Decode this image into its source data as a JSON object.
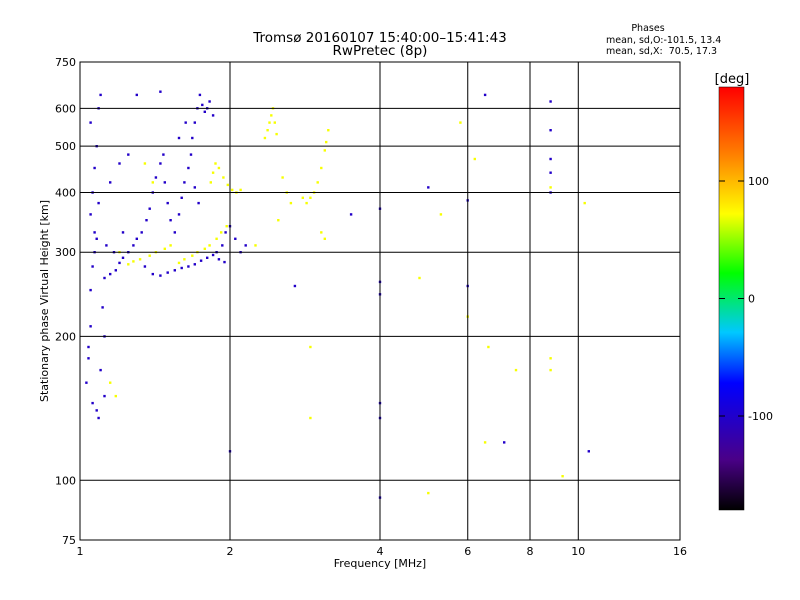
{
  "chart_data": {
    "type": "scatter",
    "title": "Tromsø 20160107 15:40:00–15:41:43",
    "subtitle": "RwPretec (8p)",
    "xlabel": "Frequency [MHz]",
    "ylabel": "Stationary phase Virtual Height [km]",
    "x_scale": "log",
    "y_scale": "log",
    "xlim": [
      1,
      16
    ],
    "ylim": [
      75,
      750
    ],
    "x_ticks": [
      1,
      2,
      4,
      6,
      8,
      10,
      16
    ],
    "y_ticks": [
      75,
      100,
      200,
      300,
      400,
      500,
      600,
      750
    ],
    "grid": true,
    "phase_stats": {
      "heading": "Phases",
      "line_o": "mean, sd,O:-101.5, 13.4",
      "line_x": "mean, sd,X:  70.5, 17.3"
    },
    "colorbar": {
      "label": "[deg]",
      "range": [
        -180,
        180
      ],
      "ticks": [
        100,
        0,
        -100
      ]
    },
    "series": [
      {
        "mode": "O",
        "phase_deg": -101.5,
        "points": [
          [
            1.03,
            160
          ],
          [
            1.04,
            180
          ],
          [
            1.05,
            210
          ],
          [
            1.05,
            250
          ],
          [
            1.06,
            280
          ],
          [
            1.07,
            300
          ],
          [
            1.08,
            320
          ],
          [
            1.05,
            360
          ],
          [
            1.06,
            400
          ],
          [
            1.07,
            450
          ],
          [
            1.08,
            500
          ],
          [
            1.05,
            560
          ],
          [
            1.09,
            600
          ],
          [
            1.1,
            640
          ],
          [
            1.08,
            140
          ],
          [
            1.1,
            170
          ],
          [
            1.12,
            200
          ],
          [
            1.11,
            230
          ],
          [
            1.12,
            265
          ],
          [
            1.15,
            270
          ],
          [
            1.18,
            275
          ],
          [
            1.2,
            285
          ],
          [
            1.22,
            292
          ],
          [
            1.25,
            300
          ],
          [
            1.28,
            310
          ],
          [
            1.3,
            320
          ],
          [
            1.33,
            330
          ],
          [
            1.36,
            350
          ],
          [
            1.38,
            370
          ],
          [
            1.4,
            400
          ],
          [
            1.42,
            430
          ],
          [
            1.45,
            460
          ],
          [
            1.47,
            480
          ],
          [
            1.5,
            380
          ],
          [
            1.52,
            350
          ],
          [
            1.55,
            330
          ],
          [
            1.58,
            360
          ],
          [
            1.6,
            390
          ],
          [
            1.62,
            420
          ],
          [
            1.65,
            450
          ],
          [
            1.67,
            480
          ],
          [
            1.68,
            520
          ],
          [
            1.7,
            560
          ],
          [
            1.72,
            600
          ],
          [
            1.74,
            640
          ],
          [
            1.76,
            610
          ],
          [
            1.78,
            590
          ],
          [
            1.8,
            600
          ],
          [
            1.82,
            620
          ],
          [
            1.85,
            580
          ],
          [
            1.88,
            300
          ],
          [
            1.9,
            290
          ],
          [
            1.93,
            310
          ],
          [
            1.96,
            330
          ],
          [
            2.0,
            340
          ],
          [
            2.05,
            320
          ],
          [
            2.1,
            300
          ],
          [
            2.15,
            310
          ],
          [
            1.35,
            280
          ],
          [
            1.4,
            270
          ],
          [
            1.45,
            268
          ],
          [
            1.5,
            272
          ],
          [
            1.55,
            275
          ],
          [
            1.6,
            278
          ],
          [
            1.65,
            280
          ],
          [
            1.7,
            283
          ],
          [
            1.75,
            288
          ],
          [
            1.8,
            292
          ],
          [
            1.85,
            296
          ],
          [
            1.95,
            286
          ],
          [
            2.0,
            115
          ],
          [
            1.15,
            420
          ],
          [
            1.2,
            460
          ],
          [
            1.25,
            480
          ],
          [
            1.3,
            640
          ],
          [
            1.45,
            650
          ],
          [
            1.12,
            150
          ],
          [
            1.09,
            135
          ],
          [
            1.06,
            145
          ],
          [
            1.04,
            190
          ],
          [
            1.07,
            330
          ],
          [
            1.09,
            380
          ],
          [
            1.13,
            310
          ],
          [
            1.17,
            300
          ],
          [
            1.22,
            330
          ],
          [
            1.48,
            420
          ],
          [
            1.58,
            520
          ],
          [
            1.63,
            560
          ],
          [
            1.7,
            410
          ],
          [
            1.73,
            380
          ],
          [
            4.0,
            92
          ],
          [
            4.0,
            135
          ],
          [
            4.0,
            145
          ],
          [
            4.0,
            245
          ],
          [
            4.0,
            260
          ],
          [
            4.0,
            370
          ],
          [
            5.0,
            410
          ],
          [
            6.0,
            255
          ],
          [
            6.0,
            385
          ],
          [
            6.5,
            640
          ],
          [
            8.8,
            620
          ],
          [
            8.8,
            540
          ],
          [
            8.8,
            470
          ],
          [
            8.8,
            440
          ],
          [
            8.8,
            400
          ],
          [
            10.5,
            115
          ],
          [
            7.1,
            120
          ],
          [
            2.7,
            255
          ],
          [
            3.5,
            360
          ]
        ]
      },
      {
        "mode": "X",
        "phase_deg": 70.5,
        "points": [
          [
            1.25,
            283
          ],
          [
            1.28,
            287
          ],
          [
            1.32,
            290
          ],
          [
            1.38,
            295
          ],
          [
            1.42,
            300
          ],
          [
            1.48,
            305
          ],
          [
            1.52,
            310
          ],
          [
            1.58,
            285
          ],
          [
            1.62,
            290
          ],
          [
            1.68,
            295
          ],
          [
            1.72,
            300
          ],
          [
            1.78,
            305
          ],
          [
            1.82,
            310
          ],
          [
            1.88,
            320
          ],
          [
            1.92,
            330
          ],
          [
            1.97,
            340
          ],
          [
            1.83,
            420
          ],
          [
            1.85,
            440
          ],
          [
            1.87,
            460
          ],
          [
            1.9,
            450
          ],
          [
            1.94,
            430
          ],
          [
            1.98,
            415
          ],
          [
            2.02,
            405
          ],
          [
            2.06,
            400
          ],
          [
            2.1,
            405
          ],
          [
            2.35,
            520
          ],
          [
            2.38,
            540
          ],
          [
            2.4,
            560
          ],
          [
            2.42,
            580
          ],
          [
            2.44,
            600
          ],
          [
            2.46,
            560
          ],
          [
            2.48,
            530
          ],
          [
            2.55,
            430
          ],
          [
            2.6,
            400
          ],
          [
            2.65,
            380
          ],
          [
            2.8,
            390
          ],
          [
            2.85,
            380
          ],
          [
            2.9,
            390
          ],
          [
            2.95,
            400
          ],
          [
            3.0,
            420
          ],
          [
            3.05,
            450
          ],
          [
            3.1,
            490
          ],
          [
            3.12,
            510
          ],
          [
            3.15,
            540
          ],
          [
            3.05,
            330
          ],
          [
            3.1,
            320
          ],
          [
            1.35,
            460
          ],
          [
            1.4,
            420
          ],
          [
            2.25,
            310
          ],
          [
            2.5,
            350
          ],
          [
            1.15,
            160
          ],
          [
            1.18,
            150
          ],
          [
            1.2,
            300
          ],
          [
            2.9,
            190
          ],
          [
            2.9,
            135
          ],
          [
            5.0,
            94
          ],
          [
            5.8,
            560
          ],
          [
            6.0,
            220
          ],
          [
            6.2,
            470
          ],
          [
            6.5,
            120
          ],
          [
            6.6,
            190
          ],
          [
            7.5,
            170
          ],
          [
            8.8,
            170
          ],
          [
            8.8,
            180
          ],
          [
            9.3,
            102
          ],
          [
            10.3,
            380
          ],
          [
            8.8,
            410
          ],
          [
            4.8,
            265
          ],
          [
            5.3,
            360
          ]
        ]
      }
    ]
  }
}
